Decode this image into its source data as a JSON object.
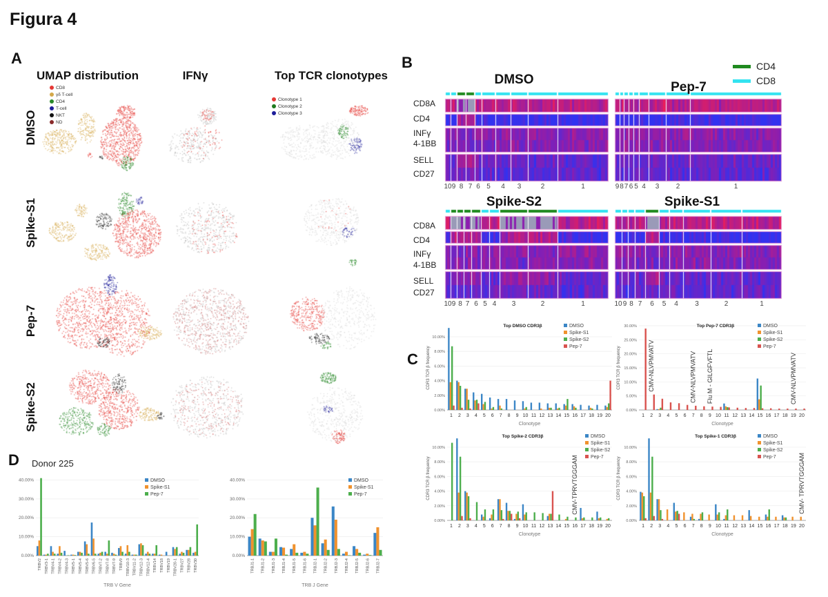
{
  "figure": {
    "title": "Figura 4",
    "panel_labels": {
      "a": "A",
      "b": "B",
      "c": "C",
      "d": "D"
    }
  },
  "colors": {
    "DMSO": "#3b86c6",
    "Spike-S1": "#f0922e",
    "Spike-S2": "#4cae4c",
    "Pep-7": "#d9534f",
    "CD4": "#1f8a1f",
    "CD8": "#33e3f0"
  },
  "panel_a": {
    "columns": [
      "UMAP distribution",
      "IFNγ",
      "Top TCR clonotypes"
    ],
    "rows": [
      "DMSO",
      "Spike-S1",
      "Pep-7",
      "Spike-S2"
    ],
    "cell_type_legend": [
      {
        "label": "CD8",
        "color": "#e53935"
      },
      {
        "label": "γδ T-cell",
        "color": "#d4a84a"
      },
      {
        "label": "CD4",
        "color": "#2a8a2a"
      },
      {
        "label": "T-cell",
        "color": "#1e1e9a"
      },
      {
        "label": "NKT",
        "color": "#111111"
      },
      {
        "label": "ND",
        "color": "#8a2a2a"
      }
    ],
    "clonotype_legend": [
      {
        "label": "Clonotype 1",
        "color": "#e53935"
      },
      {
        "label": "Clonotype 2",
        "color": "#1f7a1f"
      },
      {
        "label": "Clonotype 3",
        "color": "#1e1e9a"
      }
    ]
  },
  "panel_b": {
    "legend": [
      {
        "label": "CD4",
        "color": "#1f8a1f"
      },
      {
        "label": "CD8",
        "color": "#33e3f0"
      }
    ],
    "genes": [
      "CD8A",
      "CD4",
      "INFγ",
      "4-1BB",
      "SELL",
      "CD27"
    ],
    "heatmaps": [
      {
        "title": "DMSO",
        "clusters": [
          "10",
          "9",
          "8",
          "7",
          "6",
          "5",
          "4",
          "3",
          "2",
          "1"
        ],
        "cd4_clusters": [
          "8",
          "7"
        ]
      },
      {
        "title": "Pep-7",
        "clusters": [
          "9",
          "8",
          "7",
          "6",
          "5",
          "4",
          "3",
          "2",
          "1"
        ],
        "cd4_clusters": []
      },
      {
        "title": "Spike-S2",
        "clusters": [
          "10",
          "9",
          "8",
          "7",
          "6",
          "5",
          "4",
          "3",
          "2",
          "1"
        ],
        "cd4_clusters": [
          "9",
          "8",
          "7",
          "6",
          "3",
          "2"
        ]
      },
      {
        "title": "Spike-S1",
        "clusters": [
          "10",
          "9",
          "8",
          "7",
          "6",
          "5",
          "4",
          "3",
          "2",
          "1"
        ],
        "cd4_clusters": [
          "6"
        ]
      }
    ]
  },
  "panel_d": {
    "donor": "Donor 225"
  },
  "chart_data": [
    {
      "type": "bar",
      "title": "Top DMSO CDR3β",
      "xlabel": "Clonotype",
      "ylabel": "CDR3 TCR β frequency",
      "ylim": [
        0,
        11.5
      ],
      "yticks": [
        0,
        2,
        4,
        6,
        8,
        10
      ],
      "ytick_labels": [
        "0.00%",
        "2.00%",
        "4.00%",
        "6.00%",
        "8.00%",
        "10.00%"
      ],
      "categories": [
        "1",
        "2",
        "3",
        "4",
        "5",
        "6",
        "7",
        "8",
        "9",
        "10",
        "11",
        "12",
        "13",
        "14",
        "15",
        "16",
        "17",
        "18",
        "19",
        "20"
      ],
      "legend": "top-right",
      "series": [
        {
          "name": "DMSO",
          "color": "#3b86c6",
          "values": [
            11.2,
            4,
            2.9,
            2.4,
            2.2,
            1.7,
            1.5,
            1.5,
            1.3,
            1.2,
            1,
            1,
            0.9,
            0.9,
            0.8,
            0.8,
            0.7,
            0.6,
            0.7,
            0.6
          ]
        },
        {
          "name": "Spike-S1",
          "color": "#f0922e",
          "values": [
            3.8,
            3.8,
            2.9,
            1.3,
            0.8,
            0.2,
            0.6,
            0,
            0,
            0.2,
            0,
            0.2,
            0.3,
            0.2,
            0.6,
            0.5,
            0,
            0.3,
            0,
            0.4
          ]
        },
        {
          "name": "Spike-S2",
          "color": "#4cae4c",
          "values": [
            8.7,
            3.3,
            1.4,
            1.4,
            1.1,
            0.4,
            0.2,
            0,
            0,
            0.4,
            0,
            0,
            0.3,
            0.3,
            1.5,
            0.3,
            0,
            0.2,
            0,
            0.9
          ]
        },
        {
          "name": "Pep-7",
          "color": "#d9534f",
          "values": [
            0.6,
            0.3,
            0.2,
            0.9,
            0,
            0,
            0,
            0,
            0,
            0,
            0,
            0,
            0,
            0,
            0,
            0,
            0,
            0,
            0,
            4
          ]
        }
      ],
      "annotations": []
    },
    {
      "type": "bar",
      "title": "Top Pep-7 CDR3β",
      "xlabel": "Clonotype",
      "ylabel": "CDR3 TCR β frequency",
      "ylim": [
        0,
        30
      ],
      "yticks": [
        0,
        5,
        10,
        15,
        20,
        25,
        30
      ],
      "ytick_labels": [
        "0.00%",
        "5.00%",
        "10.00%",
        "15.00%",
        "20.00%",
        "25.00%",
        "30.00%"
      ],
      "categories": [
        "1",
        "2",
        "3",
        "4",
        "5",
        "6",
        "7",
        "8",
        "9",
        "10",
        "11",
        "12",
        "13",
        "14",
        "15",
        "16",
        "17",
        "18",
        "19",
        "20"
      ],
      "legend": "top-right",
      "series": [
        {
          "name": "DMSO",
          "color": "#3b86c6",
          "values": [
            0,
            0,
            0.3,
            0,
            0,
            0,
            0,
            0,
            0,
            0,
            2.3,
            0,
            0,
            0,
            11.2,
            0,
            0,
            0,
            0,
            0
          ]
        },
        {
          "name": "Spike-S1",
          "color": "#f0922e",
          "values": [
            0,
            0,
            0.3,
            0,
            0,
            0,
            0,
            0,
            0,
            0,
            1.3,
            0,
            0,
            0,
            3.8,
            0,
            0,
            0,
            0,
            0
          ]
        },
        {
          "name": "Spike-S2",
          "color": "#4cae4c",
          "values": [
            0,
            0,
            0.8,
            0,
            0,
            0,
            0,
            0,
            0,
            0,
            1,
            0,
            0,
            0,
            8.7,
            0,
            0,
            0,
            0,
            0
          ]
        },
        {
          "name": "Pep-7",
          "color": "#d9534f",
          "values": [
            29,
            5.5,
            4,
            2.7,
            2.4,
            1.8,
            1.5,
            1.3,
            1.2,
            1.1,
            0.9,
            0.8,
            0.7,
            0.7,
            0.6,
            0.6,
            0.5,
            0.5,
            0.5,
            0.5
          ]
        }
      ],
      "annotations": [
        {
          "category": "2",
          "text": "CMV-NLVPMVATV"
        },
        {
          "category": "7",
          "text": "CMV-NLVPMVATV"
        },
        {
          "category": "9",
          "text": "Flu M - GILGFVFTL"
        },
        {
          "category": "19",
          "text": "CMV-NLVPMVATV"
        }
      ]
    },
    {
      "type": "bar",
      "title": "Top Spike-2 CDR3β",
      "xlabel": "Clonotype",
      "ylabel": "CDR3 TCR β frequency",
      "ylim": [
        0,
        11.5
      ],
      "yticks": [
        0,
        2,
        4,
        6,
        8,
        10
      ],
      "ytick_labels": [
        "0.00%",
        "2.00%",
        "4.00%",
        "6.00%",
        "8.00%",
        "10.00%"
      ],
      "categories": [
        "1",
        "2",
        "3",
        "4",
        "5",
        "6",
        "7",
        "8",
        "9",
        "10",
        "11",
        "12",
        "13",
        "14",
        "15",
        "16",
        "17",
        "18",
        "19",
        "20"
      ],
      "legend": "top-right",
      "series": [
        {
          "name": "DMSO",
          "color": "#3b86c6",
          "values": [
            0,
            11.2,
            4,
            0,
            0.8,
            0.3,
            2.9,
            2.4,
            0.2,
            2.2,
            0,
            0,
            0.6,
            0,
            0,
            0,
            1.7,
            0,
            1.2,
            0
          ]
        },
        {
          "name": "Spike-S1",
          "color": "#f0922e",
          "values": [
            0,
            3.8,
            3.8,
            0,
            0.5,
            0.8,
            2.9,
            1.3,
            0.9,
            0.8,
            0,
            0,
            0.9,
            0,
            0.2,
            0,
            0.3,
            0,
            0.3,
            0.2
          ]
        },
        {
          "name": "Spike-S2",
          "color": "#4cae4c",
          "values": [
            10.6,
            8.7,
            3.3,
            2.5,
            1.5,
            1.5,
            1.4,
            1.3,
            1.2,
            1.1,
            1.1,
            1,
            0.9,
            0.8,
            0.5,
            0.4,
            0.4,
            0.4,
            0.4,
            0.3
          ]
        },
        {
          "name": "Pep-7",
          "color": "#d9534f",
          "values": [
            0,
            0.6,
            0.3,
            0,
            0,
            0,
            0.2,
            0.9,
            0.3,
            0,
            0,
            0,
            4,
            0,
            0,
            0,
            0,
            0,
            0,
            0
          ]
        }
      ],
      "annotations": [
        {
          "category": "16",
          "text": "CMV-TPRVTGGGAM"
        }
      ]
    },
    {
      "type": "bar",
      "title": "Top Spike-1 CDR3β",
      "xlabel": "Clonotype",
      "ylabel": "CDR3 TCR β frequency",
      "ylim": [
        0,
        11.5
      ],
      "yticks": [
        0,
        2,
        4,
        6,
        8,
        10
      ],
      "ytick_labels": [
        "0.00%",
        "2.00%",
        "4.00%",
        "6.00%",
        "8.00%",
        "10.00%"
      ],
      "categories": [
        "1",
        "2",
        "3",
        "4",
        "5",
        "6",
        "7",
        "8",
        "9",
        "10",
        "11",
        "12",
        "13",
        "14",
        "15",
        "16",
        "17",
        "18",
        "19",
        "20"
      ],
      "legend": "top-right",
      "series": [
        {
          "name": "DMSO",
          "color": "#3b86c6",
          "values": [
            3.9,
            11.2,
            2.9,
            0,
            2.4,
            0,
            0.5,
            0.2,
            0,
            2.2,
            0.2,
            0,
            0,
            1.4,
            0,
            0.8,
            0,
            0.7,
            0,
            0
          ]
        },
        {
          "name": "Spike-S1",
          "color": "#f0922e",
          "values": [
            3.8,
            3.8,
            2.9,
            1.5,
            1.2,
            1.1,
            0.9,
            0.9,
            0.8,
            0.8,
            0.7,
            0.7,
            0.7,
            0.6,
            0.5,
            0.5,
            0.5,
            0.4,
            0.5,
            0.5
          ]
        },
        {
          "name": "Spike-S2",
          "color": "#4cae4c",
          "values": [
            3.3,
            8.7,
            1.4,
            0,
            1.3,
            0,
            0.2,
            1.1,
            0,
            1.1,
            1.5,
            0,
            0,
            0,
            0,
            1.5,
            0,
            0.4,
            0,
            0
          ]
        },
        {
          "name": "Pep-7",
          "color": "#d9534f",
          "values": [
            0.3,
            0.6,
            0.2,
            0,
            0.9,
            0,
            0,
            0,
            0,
            0,
            0,
            0,
            0,
            0,
            0,
            0,
            0,
            0,
            0,
            0
          ]
        }
      ],
      "annotations": [
        {
          "category": "20",
          "text": "CMV- TPRVTGGGAM"
        }
      ]
    },
    {
      "type": "bar",
      "title": "",
      "xlabel": "TRB V Gene",
      "ylabel": "",
      "ylim": [
        0,
        42
      ],
      "yticks": [
        0,
        10,
        20,
        30,
        40
      ],
      "ytick_labels": [
        "0.00%",
        "10.00%",
        "20.00%",
        "30.00%",
        "40.00%"
      ],
      "categories": [
        "TRBV2",
        "TRBV3-1",
        "TRBV4-1",
        "TRBV4-2",
        "TRBV4-3",
        "TRBV5-1",
        "TRBV5-4",
        "TRBV5-6",
        "TRBV6-5",
        "TRBV7-2",
        "TRBV7-8",
        "TRBV7-9",
        "TRBV9",
        "TRBV10-3",
        "TRBV11-2",
        "TRBV12-3",
        "TRBV12-4",
        "TRBV14",
        "TRBV18",
        "TRBV19",
        "TRBV20-1",
        "TRBV27",
        "TRBV28",
        "TRBV30"
      ],
      "legend": "top-right",
      "series": [
        {
          "name": "DMSO",
          "color": "#3b86c6",
          "values": [
            5,
            0.5,
            5,
            1,
            2.5,
            0.5,
            2,
            7.5,
            17.5,
            1,
            2,
            1.5,
            4,
            1,
            0.5,
            6,
            1,
            1,
            0.5,
            2,
            4.5,
            1,
            3,
            1.5
          ]
        },
        {
          "name": "Spike-S1",
          "color": "#f0922e",
          "values": [
            8,
            0.5,
            2,
            5,
            0,
            0.5,
            2,
            6,
            9,
            1.5,
            1,
            1,
            5,
            5.5,
            0.5,
            6.5,
            2,
            1,
            0.5,
            0,
            3.5,
            2,
            3,
            2
          ]
        },
        {
          "name": "Pep-7",
          "color": "#4cae4c",
          "values": [
            41,
            1,
            1,
            1.5,
            0.2,
            0.3,
            1.5,
            1,
            1,
            2,
            8,
            0.5,
            2,
            2,
            0.5,
            5.5,
            1,
            5.5,
            0,
            0,
            4.5,
            1.5,
            4.5,
            16.5
          ]
        }
      ],
      "annotations": []
    },
    {
      "type": "bar",
      "title": "",
      "xlabel": "TRB J Gene",
      "ylabel": "",
      "ylim": [
        0,
        42
      ],
      "yticks": [
        0,
        10,
        20,
        30,
        40
      ],
      "ytick_labels": [
        "0.00%",
        "10.00%",
        "20.00%",
        "30.00%",
        "40.00%"
      ],
      "categories": [
        "TRBJ1-1",
        "TRBJ1-2",
        "TRBJ1-3",
        "TRBJ1-4",
        "TRBJ1-5",
        "TRBJ1-6",
        "TRBJ2-1",
        "TRBJ2-2",
        "TRBJ2-3",
        "TRBJ2-4",
        "TRBJ2-5",
        "TRBJ2-6",
        "TRBJ2-7"
      ],
      "legend": "top-right",
      "series": [
        {
          "name": "DMSO",
          "color": "#3b86c6",
          "values": [
            10,
            9,
            2,
            4.5,
            3.5,
            1.5,
            20,
            6.5,
            26,
            1,
            5,
            0.5,
            12
          ]
        },
        {
          "name": "Spike-S1",
          "color": "#f0922e",
          "values": [
            14,
            8,
            2,
            4.2,
            6,
            2,
            16,
            8.5,
            19,
            2,
            3.5,
            1,
            15
          ]
        },
        {
          "name": "Pep-7",
          "color": "#4cae4c",
          "values": [
            22,
            7.5,
            9,
            0.5,
            1.5,
            1,
            36,
            3,
            3.5,
            0.2,
            1.5,
            0.3,
            3
          ]
        }
      ],
      "annotations": []
    }
  ]
}
